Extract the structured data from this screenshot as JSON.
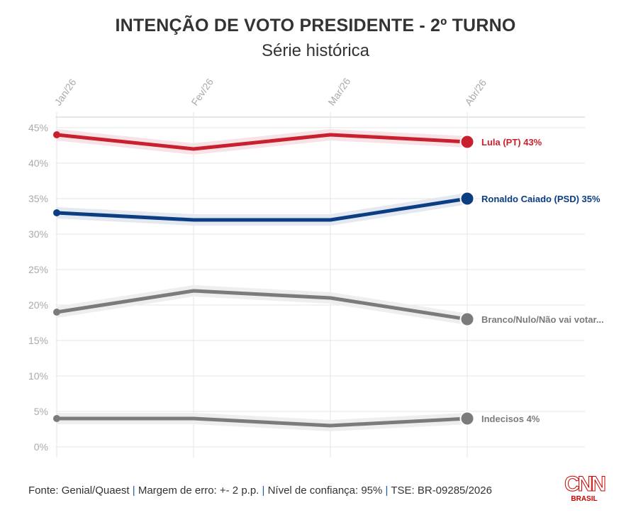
{
  "chart_data": {
    "type": "line",
    "title": "INTENÇÃO DE VOTO PRESIDENTE - 2º TURNO",
    "subtitle": "Série histórica",
    "x": [
      "Jan/26",
      "Fev/26",
      "Mar/26",
      "Abr/26"
    ],
    "yticks": [
      "0%",
      "5%",
      "10%",
      "15%",
      "20%",
      "25%",
      "30%",
      "35%",
      "40%",
      "45%"
    ],
    "ylim": [
      0,
      45
    ],
    "grid": true,
    "series": [
      {
        "name": "Lula (PT) 43%",
        "values": [
          44,
          42,
          44,
          43
        ],
        "color": "#c8202f",
        "band_color": "#f7e3e5"
      },
      {
        "name": "Ronaldo Caiado (PSD) 35%",
        "values": [
          33,
          32,
          32,
          35
        ],
        "color": "#0b3d82",
        "band_color": "#e3e8f1"
      },
      {
        "name": "Branco/Nulo/Não vai votar...",
        "values": [
          19,
          22,
          21,
          18
        ],
        "color": "#7b7b7b",
        "band_color": "#eeeeee"
      },
      {
        "name": "Indecisos 4%",
        "values": [
          4,
          4,
          3,
          4
        ],
        "color": "#7b7b7b",
        "band_color": "#eeeeee"
      }
    ]
  },
  "footer": {
    "source": "Fonte: Genial/Quaest",
    "margin": "Margem de erro: +- 2 p.p.",
    "confidence": "Nível de confiança: 95%",
    "tse": "TSE: BR-09285/2026",
    "sep": "|"
  },
  "logo": {
    "name": "CNN",
    "sub": "BRASIL"
  }
}
